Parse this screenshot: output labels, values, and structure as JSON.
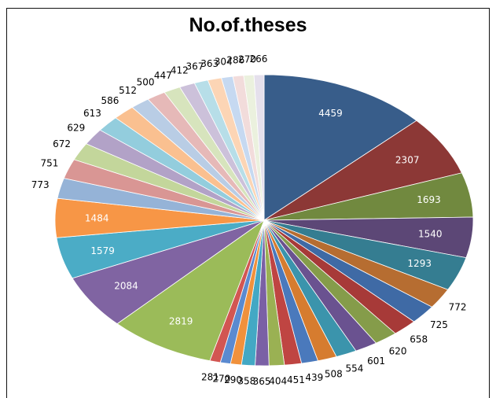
{
  "chart_data": {
    "type": "pie",
    "title": "No.of.theses",
    "values": [
      4459,
      2307,
      1693,
      1540,
      1293,
      772,
      725,
      658,
      620,
      601,
      554,
      508,
      439,
      451,
      404,
      365,
      358,
      290,
      270,
      281,
      2819,
      2084,
      1579,
      1484,
      773,
      751,
      672,
      629,
      613,
      586,
      512,
      500,
      447,
      412,
      367,
      363,
      304,
      286,
      270,
      266
    ],
    "colors": [
      "#385D8A",
      "#8C3836",
      "#71893F",
      "#5C4776",
      "#357D91",
      "#B66D31",
      "#3F6AA5",
      "#A73A38",
      "#859C4A",
      "#6A5290",
      "#3B94AC",
      "#D67C2F",
      "#4A79BC",
      "#BF4542",
      "#9AB153",
      "#7A60A5",
      "#43A8C4",
      "#F0913C",
      "#5A8AD0",
      "#D25652",
      "#9BBB59",
      "#8064A2",
      "#4BACC6",
      "#F79646",
      "#95B3D7",
      "#D99694",
      "#C3D69B",
      "#B2A2C7",
      "#93CDDD",
      "#FAC090",
      "#B9CDE5",
      "#E6B9B8",
      "#D7E4BD",
      "#CCC1DA",
      "#B7DEE8",
      "#FCD5B5",
      "#C6D9F1",
      "#F2DCDB",
      "#EBF1DE",
      "#E5E0EC"
    ]
  }
}
